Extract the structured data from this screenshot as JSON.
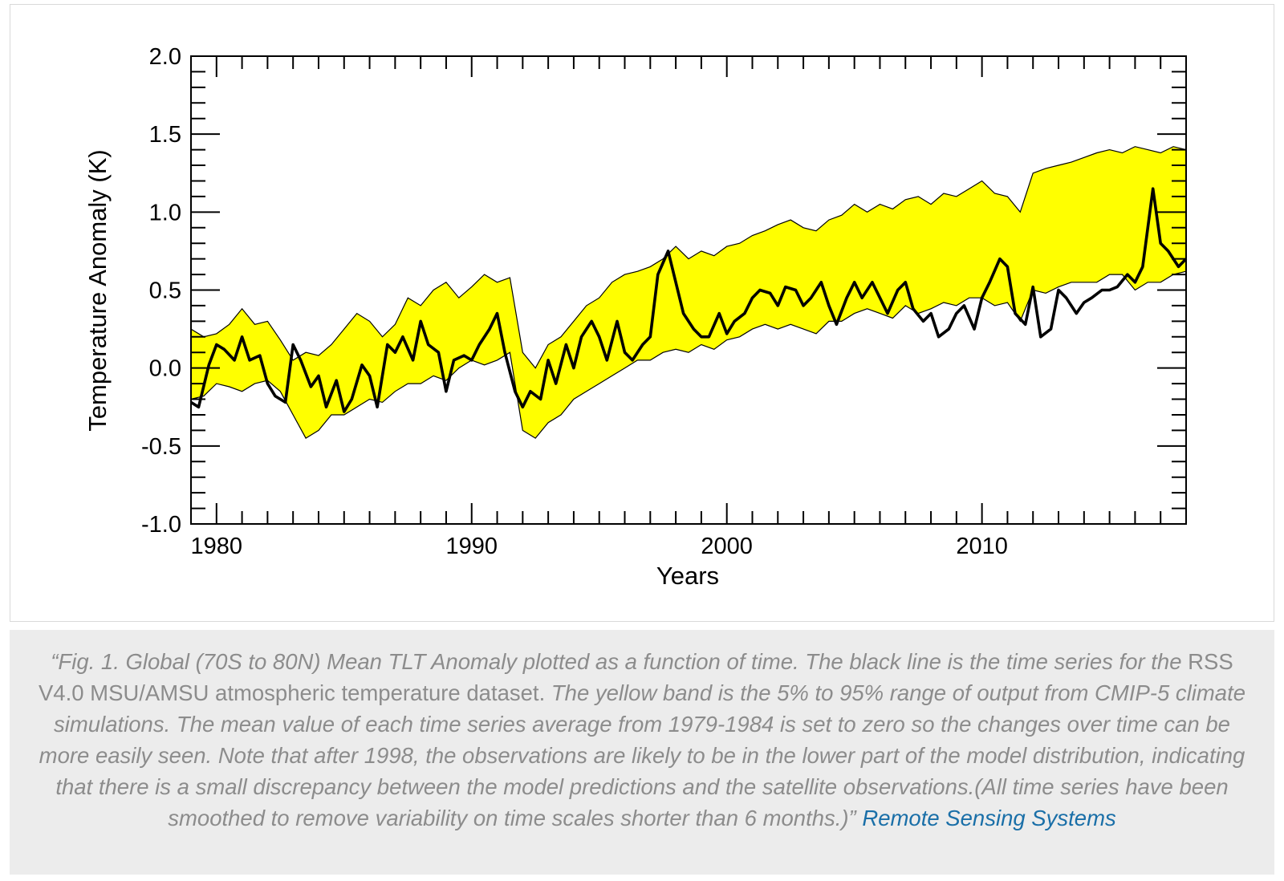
{
  "chart_data": {
    "type": "line",
    "title": "",
    "xlabel": "Years",
    "ylabel": "Temperature Anomaly (K)",
    "xlim": [
      1979,
      2018
    ],
    "ylim": [
      -1.0,
      2.0
    ],
    "x_ticks": [
      1980,
      1990,
      2000,
      2010
    ],
    "x_tick_labels": [
      "1980",
      "1990",
      "2000",
      "2010"
    ],
    "y_ticks": [
      -1.0,
      -0.5,
      0.0,
      0.5,
      1.0,
      1.5,
      2.0
    ],
    "y_tick_labels": [
      "-1.0",
      "-0.5",
      "0.0",
      "0.5",
      "1.0",
      "1.5",
      "2.0"
    ],
    "grid": false,
    "colors": {
      "band": "#ffff00",
      "line": "#000000"
    },
    "band": {
      "x": [
        1979.0,
        1979.5,
        1980.0,
        1980.5,
        1981.0,
        1981.5,
        1982.0,
        1982.5,
        1983.0,
        1983.5,
        1984.0,
        1984.5,
        1985.0,
        1985.5,
        1986.0,
        1986.5,
        1987.0,
        1987.5,
        1988.0,
        1988.5,
        1989.0,
        1989.5,
        1990.0,
        1990.5,
        1991.0,
        1991.5,
        1992.0,
        1992.5,
        1993.0,
        1993.5,
        1994.0,
        1994.5,
        1995.0,
        1995.5,
        1996.0,
        1996.5,
        1997.0,
        1997.5,
        1998.0,
        1998.5,
        1999.0,
        1999.5,
        2000.0,
        2000.5,
        2001.0,
        2001.5,
        2002.0,
        2002.5,
        2003.0,
        2003.5,
        2004.0,
        2004.5,
        2005.0,
        2005.5,
        2006.0,
        2006.5,
        2007.0,
        2007.5,
        2008.0,
        2008.5,
        2009.0,
        2009.5,
        2010.0,
        2010.5,
        2011.0,
        2011.5,
        2012.0,
        2012.5,
        2013.0,
        2013.5,
        2014.0,
        2014.5,
        2015.0,
        2015.5,
        2016.0,
        2016.5,
        2017.0,
        2017.5,
        2018.0
      ],
      "upper": [
        0.25,
        0.2,
        0.22,
        0.28,
        0.38,
        0.28,
        0.3,
        0.18,
        0.05,
        0.1,
        0.08,
        0.15,
        0.25,
        0.35,
        0.3,
        0.2,
        0.28,
        0.45,
        0.4,
        0.5,
        0.55,
        0.45,
        0.52,
        0.6,
        0.55,
        0.58,
        0.1,
        0.0,
        0.15,
        0.2,
        0.3,
        0.4,
        0.45,
        0.55,
        0.6,
        0.62,
        0.65,
        0.7,
        0.78,
        0.7,
        0.75,
        0.72,
        0.78,
        0.8,
        0.85,
        0.88,
        0.92,
        0.95,
        0.9,
        0.88,
        0.95,
        0.98,
        1.05,
        1.0,
        1.05,
        1.02,
        1.08,
        1.1,
        1.05,
        1.12,
        1.1,
        1.15,
        1.2,
        1.12,
        1.1,
        1.0,
        1.25,
        1.28,
        1.3,
        1.32,
        1.35,
        1.38,
        1.4,
        1.38,
        1.42,
        1.4,
        1.38,
        1.42,
        1.4
      ],
      "lower": [
        -0.2,
        -0.18,
        -0.1,
        -0.12,
        -0.15,
        -0.1,
        -0.08,
        -0.15,
        -0.3,
        -0.45,
        -0.4,
        -0.3,
        -0.3,
        -0.25,
        -0.2,
        -0.22,
        -0.15,
        -0.1,
        -0.1,
        -0.05,
        -0.08,
        0.0,
        0.05,
        0.02,
        0.05,
        0.1,
        -0.4,
        -0.45,
        -0.35,
        -0.3,
        -0.2,
        -0.15,
        -0.1,
        -0.05,
        0.0,
        0.05,
        0.05,
        0.1,
        0.12,
        0.1,
        0.15,
        0.12,
        0.18,
        0.2,
        0.25,
        0.28,
        0.25,
        0.28,
        0.25,
        0.22,
        0.3,
        0.3,
        0.35,
        0.38,
        0.35,
        0.32,
        0.4,
        0.35,
        0.38,
        0.42,
        0.4,
        0.45,
        0.45,
        0.4,
        0.42,
        0.3,
        0.5,
        0.48,
        0.52,
        0.55,
        0.55,
        0.55,
        0.6,
        0.6,
        0.5,
        0.55,
        0.55,
        0.6,
        0.62
      ]
    },
    "series": [
      {
        "x": [
          1979.0,
          1979.3,
          1979.7,
          1980.0,
          1980.3,
          1980.7,
          1981.0,
          1981.3,
          1981.7,
          1982.0,
          1982.3,
          1982.7,
          1983.0,
          1983.3,
          1983.7,
          1984.0,
          1984.3,
          1984.7,
          1985.0,
          1985.3,
          1985.7,
          1986.0,
          1986.3,
          1986.7,
          1987.0,
          1987.3,
          1987.7,
          1988.0,
          1988.3,
          1988.7,
          1989.0,
          1989.3,
          1989.7,
          1990.0,
          1990.3,
          1990.7,
          1991.0,
          1991.3,
          1991.7,
          1992.0,
          1992.3,
          1992.7,
          1993.0,
          1993.3,
          1993.7,
          1994.0,
          1994.3,
          1994.7,
          1995.0,
          1995.3,
          1995.7,
          1996.0,
          1996.3,
          1996.7,
          1997.0,
          1997.3,
          1997.7,
          1998.0,
          1998.3,
          1998.7,
          1999.0,
          1999.3,
          1999.7,
          2000.0,
          2000.3,
          2000.7,
          2001.0,
          2001.3,
          2001.7,
          2002.0,
          2002.3,
          2002.7,
          2003.0,
          2003.3,
          2003.7,
          2004.0,
          2004.3,
          2004.7,
          2005.0,
          2005.3,
          2005.7,
          2006.0,
          2006.3,
          2006.7,
          2007.0,
          2007.3,
          2007.7,
          2008.0,
          2008.3,
          2008.7,
          2009.0,
          2009.3,
          2009.7,
          2010.0,
          2010.3,
          2010.7,
          2011.0,
          2011.3,
          2011.7,
          2012.0,
          2012.3,
          2012.7,
          2013.0,
          2013.3,
          2013.7,
          2014.0,
          2014.3,
          2014.7,
          2015.0,
          2015.3,
          2015.7,
          2016.0,
          2016.3,
          2016.7,
          2017.0,
          2017.3,
          2017.7,
          2018.0
        ],
        "values": [
          -0.22,
          -0.25,
          0.02,
          0.15,
          0.12,
          0.05,
          0.2,
          0.05,
          0.08,
          -0.1,
          -0.18,
          -0.22,
          0.15,
          0.05,
          -0.12,
          -0.05,
          -0.25,
          -0.08,
          -0.28,
          -0.2,
          0.02,
          -0.05,
          -0.25,
          0.15,
          0.1,
          0.2,
          0.05,
          0.3,
          0.15,
          0.1,
          -0.15,
          0.05,
          0.08,
          0.05,
          0.15,
          0.25,
          0.35,
          0.1,
          -0.15,
          -0.25,
          -0.15,
          -0.2,
          0.05,
          -0.1,
          0.15,
          0.0,
          0.2,
          0.3,
          0.2,
          0.05,
          0.3,
          0.1,
          0.05,
          0.15,
          0.2,
          0.6,
          0.75,
          0.55,
          0.35,
          0.25,
          0.2,
          0.2,
          0.35,
          0.22,
          0.3,
          0.35,
          0.45,
          0.5,
          0.48,
          0.4,
          0.52,
          0.5,
          0.4,
          0.45,
          0.55,
          0.4,
          0.28,
          0.45,
          0.55,
          0.45,
          0.55,
          0.45,
          0.35,
          0.5,
          0.55,
          0.38,
          0.3,
          0.35,
          0.2,
          0.25,
          0.35,
          0.4,
          0.25,
          0.45,
          0.55,
          0.7,
          0.65,
          0.35,
          0.28,
          0.52,
          0.2,
          0.25,
          0.5,
          0.45,
          0.35,
          0.42,
          0.45,
          0.5,
          0.5,
          0.52,
          0.6,
          0.55,
          0.65,
          1.15,
          0.8,
          0.75,
          0.65,
          0.7
        ]
      }
    ]
  },
  "caption": {
    "part1": "“Fig. 1.  Global (70S to 80N) Mean TLT Anomaly plotted as a function of time.  The black line is the time series for the ",
    "part2": " RSS V4.0 MSU/AMSU atmospheric temperature dataset.",
    "part3": "  The yellow band is the 5% to 95% range of output from CMIP-5 climate simulations.  The mean value of each time series average from 1979-1984 is set to zero so the changes over time can be more easily seen.  Note that after 1998, the observations are likely to be in the lower part of the model distribution, indicating that there is a small discrepancy between the model predictions and the satellite observations.(All time series have been smoothed to remove variability on time scales shorter than 6 months.)” ",
    "source_link": "Remote Sensing Systems"
  }
}
